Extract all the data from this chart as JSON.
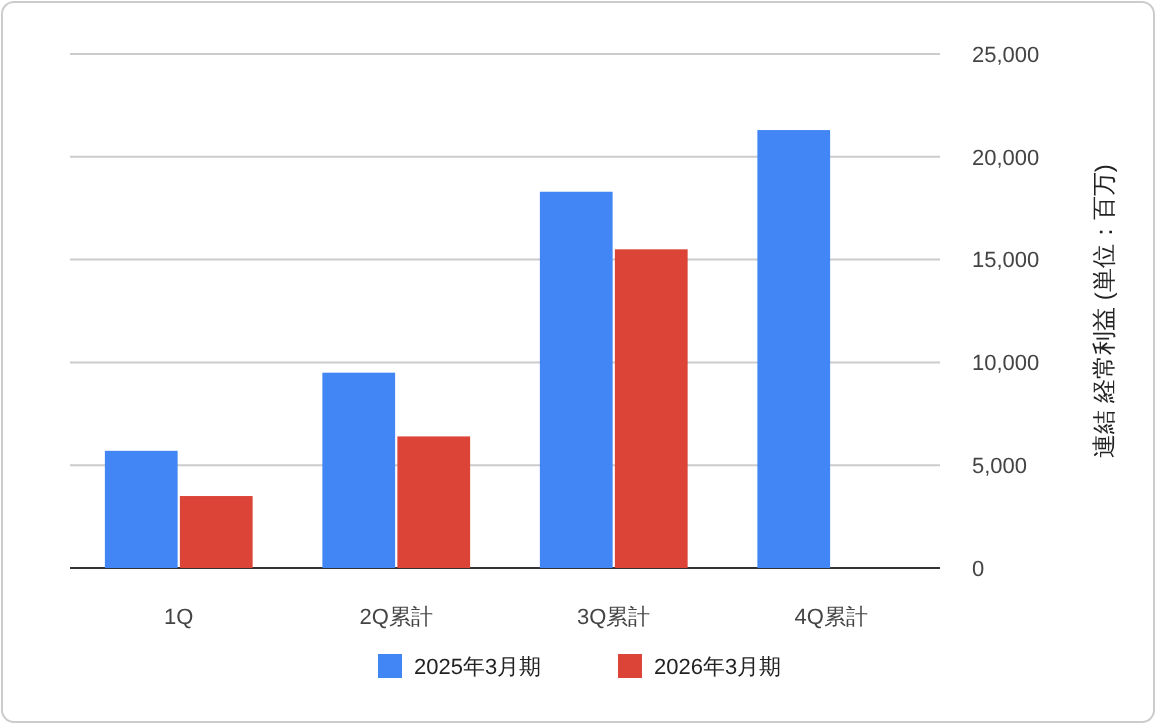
{
  "chart_data": {
    "type": "bar",
    "categories": [
      "1Q",
      "2Q累計",
      "3Q累計",
      "4Q累計"
    ],
    "series": [
      {
        "name": "2025年3月期",
        "color": "#4285f4",
        "values": [
          5700,
          9500,
          18300,
          21300
        ]
      },
      {
        "name": "2026年3月期",
        "color": "#db4437",
        "values": [
          3500,
          6400,
          15500,
          null
        ]
      }
    ],
    "ylabel": "連結 経常利益 (単位：百万)",
    "ylim": [
      0,
      25000
    ],
    "yticks": [
      {
        "value": 0,
        "label": "0"
      },
      {
        "value": 5000,
        "label": "5,000"
      },
      {
        "value": 10000,
        "label": "10,000"
      },
      {
        "value": 15000,
        "label": "15,000"
      },
      {
        "value": 20000,
        "label": "20,000"
      },
      {
        "value": 25000,
        "label": "25,000"
      }
    ],
    "grid": true,
    "legend": "bottom"
  }
}
